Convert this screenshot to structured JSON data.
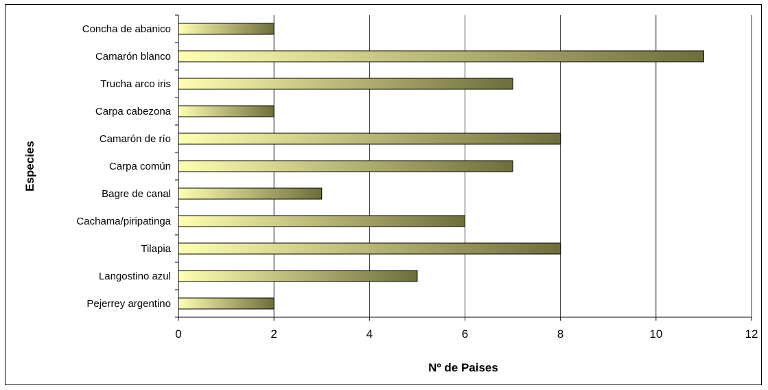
{
  "chart_data": {
    "type": "bar",
    "orientation": "horizontal",
    "categories": [
      "Concha de abanico",
      "Camarón blanco",
      "Trucha arco iris",
      "Carpa cabezona",
      "Camarón de río",
      "Carpa común",
      "Bagre de canal",
      "Cachama/piripatinga",
      "Tilapia",
      "Langostino azul",
      "Pejerrey argentino"
    ],
    "values": [
      2,
      11,
      7,
      2,
      8,
      7,
      3,
      6,
      8,
      5,
      2
    ],
    "xlabel": "Nº de Paises",
    "ylabel": "Especies",
    "xlim": [
      0,
      12
    ],
    "xticks": [
      0,
      2,
      4,
      6,
      8,
      10,
      12
    ],
    "grid": "vertical",
    "legend": "none",
    "colors": {
      "bar_light": "#ffffb0",
      "bar_dark": "#6e6e3c",
      "axis": "#000000"
    }
  }
}
